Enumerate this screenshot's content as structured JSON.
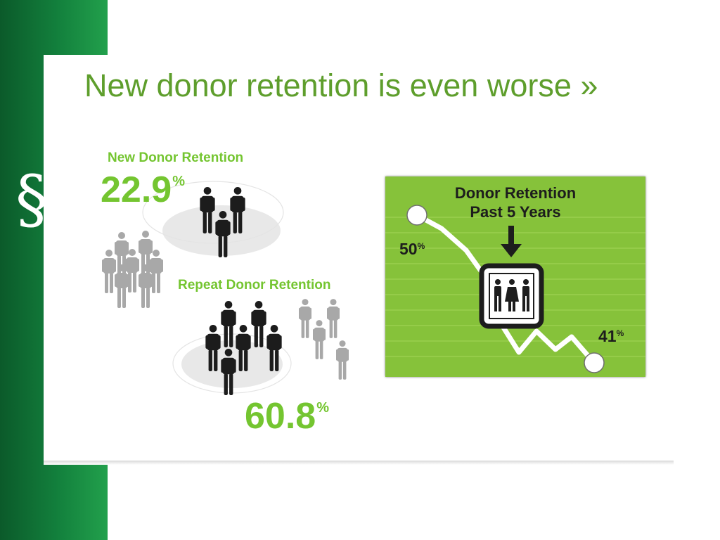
{
  "slide": {
    "title": "New donor retention is even worse »",
    "decor_glyph": "§"
  },
  "infographic": {
    "new_donor": {
      "label": "New Donor Retention",
      "value": "22.9",
      "unit": "%"
    },
    "repeat_donor": {
      "label": "Repeat Donor Retention",
      "value": "60.8",
      "unit": "%"
    }
  },
  "chart": {
    "title_line1": "Donor Retention",
    "title_line2": "Past 5 Years",
    "start": {
      "value": "50",
      "unit": "%"
    },
    "end": {
      "value": "41",
      "unit": "%"
    }
  },
  "colors": {
    "accent_green": "#74c530",
    "title_green": "#5e9e2c",
    "chart_green": "#86c23a",
    "sidebar_green": "#13813d"
  },
  "chart_data": {
    "type": "line",
    "title": "Donor Retention Past 5 Years",
    "series": [
      {
        "values": [
          50,
          41
        ]
      }
    ],
    "data_labels": [
      "50%",
      "41%"
    ],
    "extra_values": {
      "new_donor_retention_pct": 22.9,
      "repeat_donor_retention_pct": 60.8
    }
  }
}
